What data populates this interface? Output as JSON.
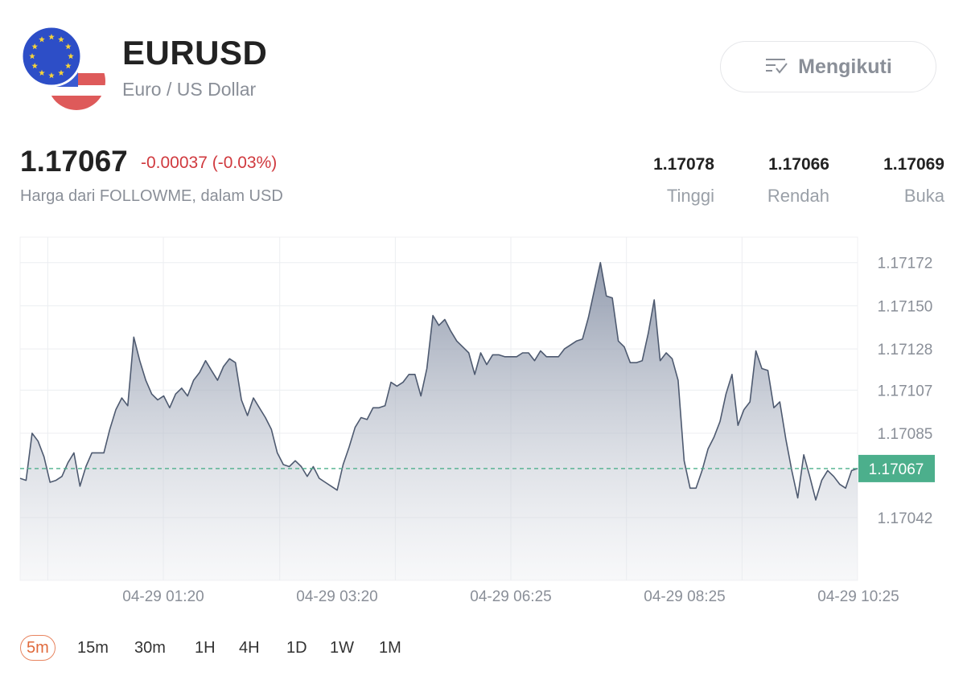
{
  "header": {
    "symbol": "EURUSD",
    "name": "Euro / US Dollar",
    "follow_label": "Mengikuti"
  },
  "quote": {
    "price": "1.17067",
    "change": "-0.00037 (-0.03%)",
    "source": "Harga dari FOLLOWME, dalam USD",
    "high_value": "1.17078",
    "high_label": "Tinggi",
    "low_value": "1.17066",
    "low_label": "Rendah",
    "open_value": "1.17069",
    "open_label": "Buka"
  },
  "colors": {
    "accent": "#4caf8c",
    "negative": "#d0393e",
    "line": "#4e5a70",
    "active_tab": "#e06a3c"
  },
  "timeframes": [
    {
      "label": "5m",
      "active": true
    },
    {
      "label": "15m",
      "active": false
    },
    {
      "label": "30m",
      "active": false
    },
    {
      "label": "1H",
      "active": false
    },
    {
      "label": "4H",
      "active": false
    },
    {
      "label": "1D",
      "active": false
    },
    {
      "label": "1W",
      "active": false
    },
    {
      "label": "1M",
      "active": false
    }
  ],
  "chart_data": {
    "type": "area",
    "y_ticks": [
      "1.17172",
      "1.17150",
      "1.17128",
      "1.17107",
      "1.17085",
      "1.17042"
    ],
    "x_ticks": [
      "04-29 01:20",
      "04-29 03:20",
      "04-29 06:25",
      "04-29 08:25",
      "04-29 10:25"
    ],
    "ylim": [
      1.1701,
      1.17185
    ],
    "current_price": 1.17067,
    "current_label": "1.17067",
    "grid": true,
    "values": [
      1.17062,
      1.17061,
      1.17085,
      1.17081,
      1.17073,
      1.1706,
      1.17061,
      1.17063,
      1.1707,
      1.17075,
      1.17058,
      1.17068,
      1.17075,
      1.17075,
      1.17075,
      1.17087,
      1.17097,
      1.17103,
      1.17099,
      1.17134,
      1.17122,
      1.17112,
      1.17105,
      1.17102,
      1.17104,
      1.17098,
      1.17105,
      1.17108,
      1.17104,
      1.17112,
      1.17116,
      1.17122,
      1.17117,
      1.17112,
      1.17119,
      1.17123,
      1.17121,
      1.17102,
      1.17094,
      1.17103,
      1.17098,
      1.17093,
      1.17087,
      1.17075,
      1.17069,
      1.17068,
      1.17071,
      1.17068,
      1.17063,
      1.17068,
      1.17062,
      1.1706,
      1.17058,
      1.17056,
      1.17069,
      1.17078,
      1.17088,
      1.17093,
      1.17092,
      1.17098,
      1.17098,
      1.17099,
      1.17111,
      1.17109,
      1.17111,
      1.17115,
      1.17115,
      1.17104,
      1.17118,
      1.17145,
      1.1714,
      1.17143,
      1.17137,
      1.17132,
      1.17129,
      1.17126,
      1.17115,
      1.17126,
      1.1712,
      1.17125,
      1.17125,
      1.17124,
      1.17124,
      1.17124,
      1.17126,
      1.17126,
      1.17122,
      1.17127,
      1.17124,
      1.17124,
      1.17124,
      1.17128,
      1.1713,
      1.17132,
      1.17133,
      1.17144,
      1.17158,
      1.17172,
      1.17155,
      1.17154,
      1.17132,
      1.17129,
      1.17121,
      1.17121,
      1.17122,
      1.17136,
      1.17153,
      1.17122,
      1.17126,
      1.17123,
      1.17112,
      1.17071,
      1.17057,
      1.17057,
      1.17066,
      1.17077,
      1.17083,
      1.17091,
      1.17105,
      1.17115,
      1.17089,
      1.17097,
      1.17101,
      1.17127,
      1.17118,
      1.17117,
      1.17098,
      1.17101,
      1.17082,
      1.17066,
      1.17052,
      1.17074,
      1.17063,
      1.17051,
      1.17061,
      1.17066,
      1.17063,
      1.17059,
      1.17057,
      1.17066,
      1.17067
    ]
  }
}
